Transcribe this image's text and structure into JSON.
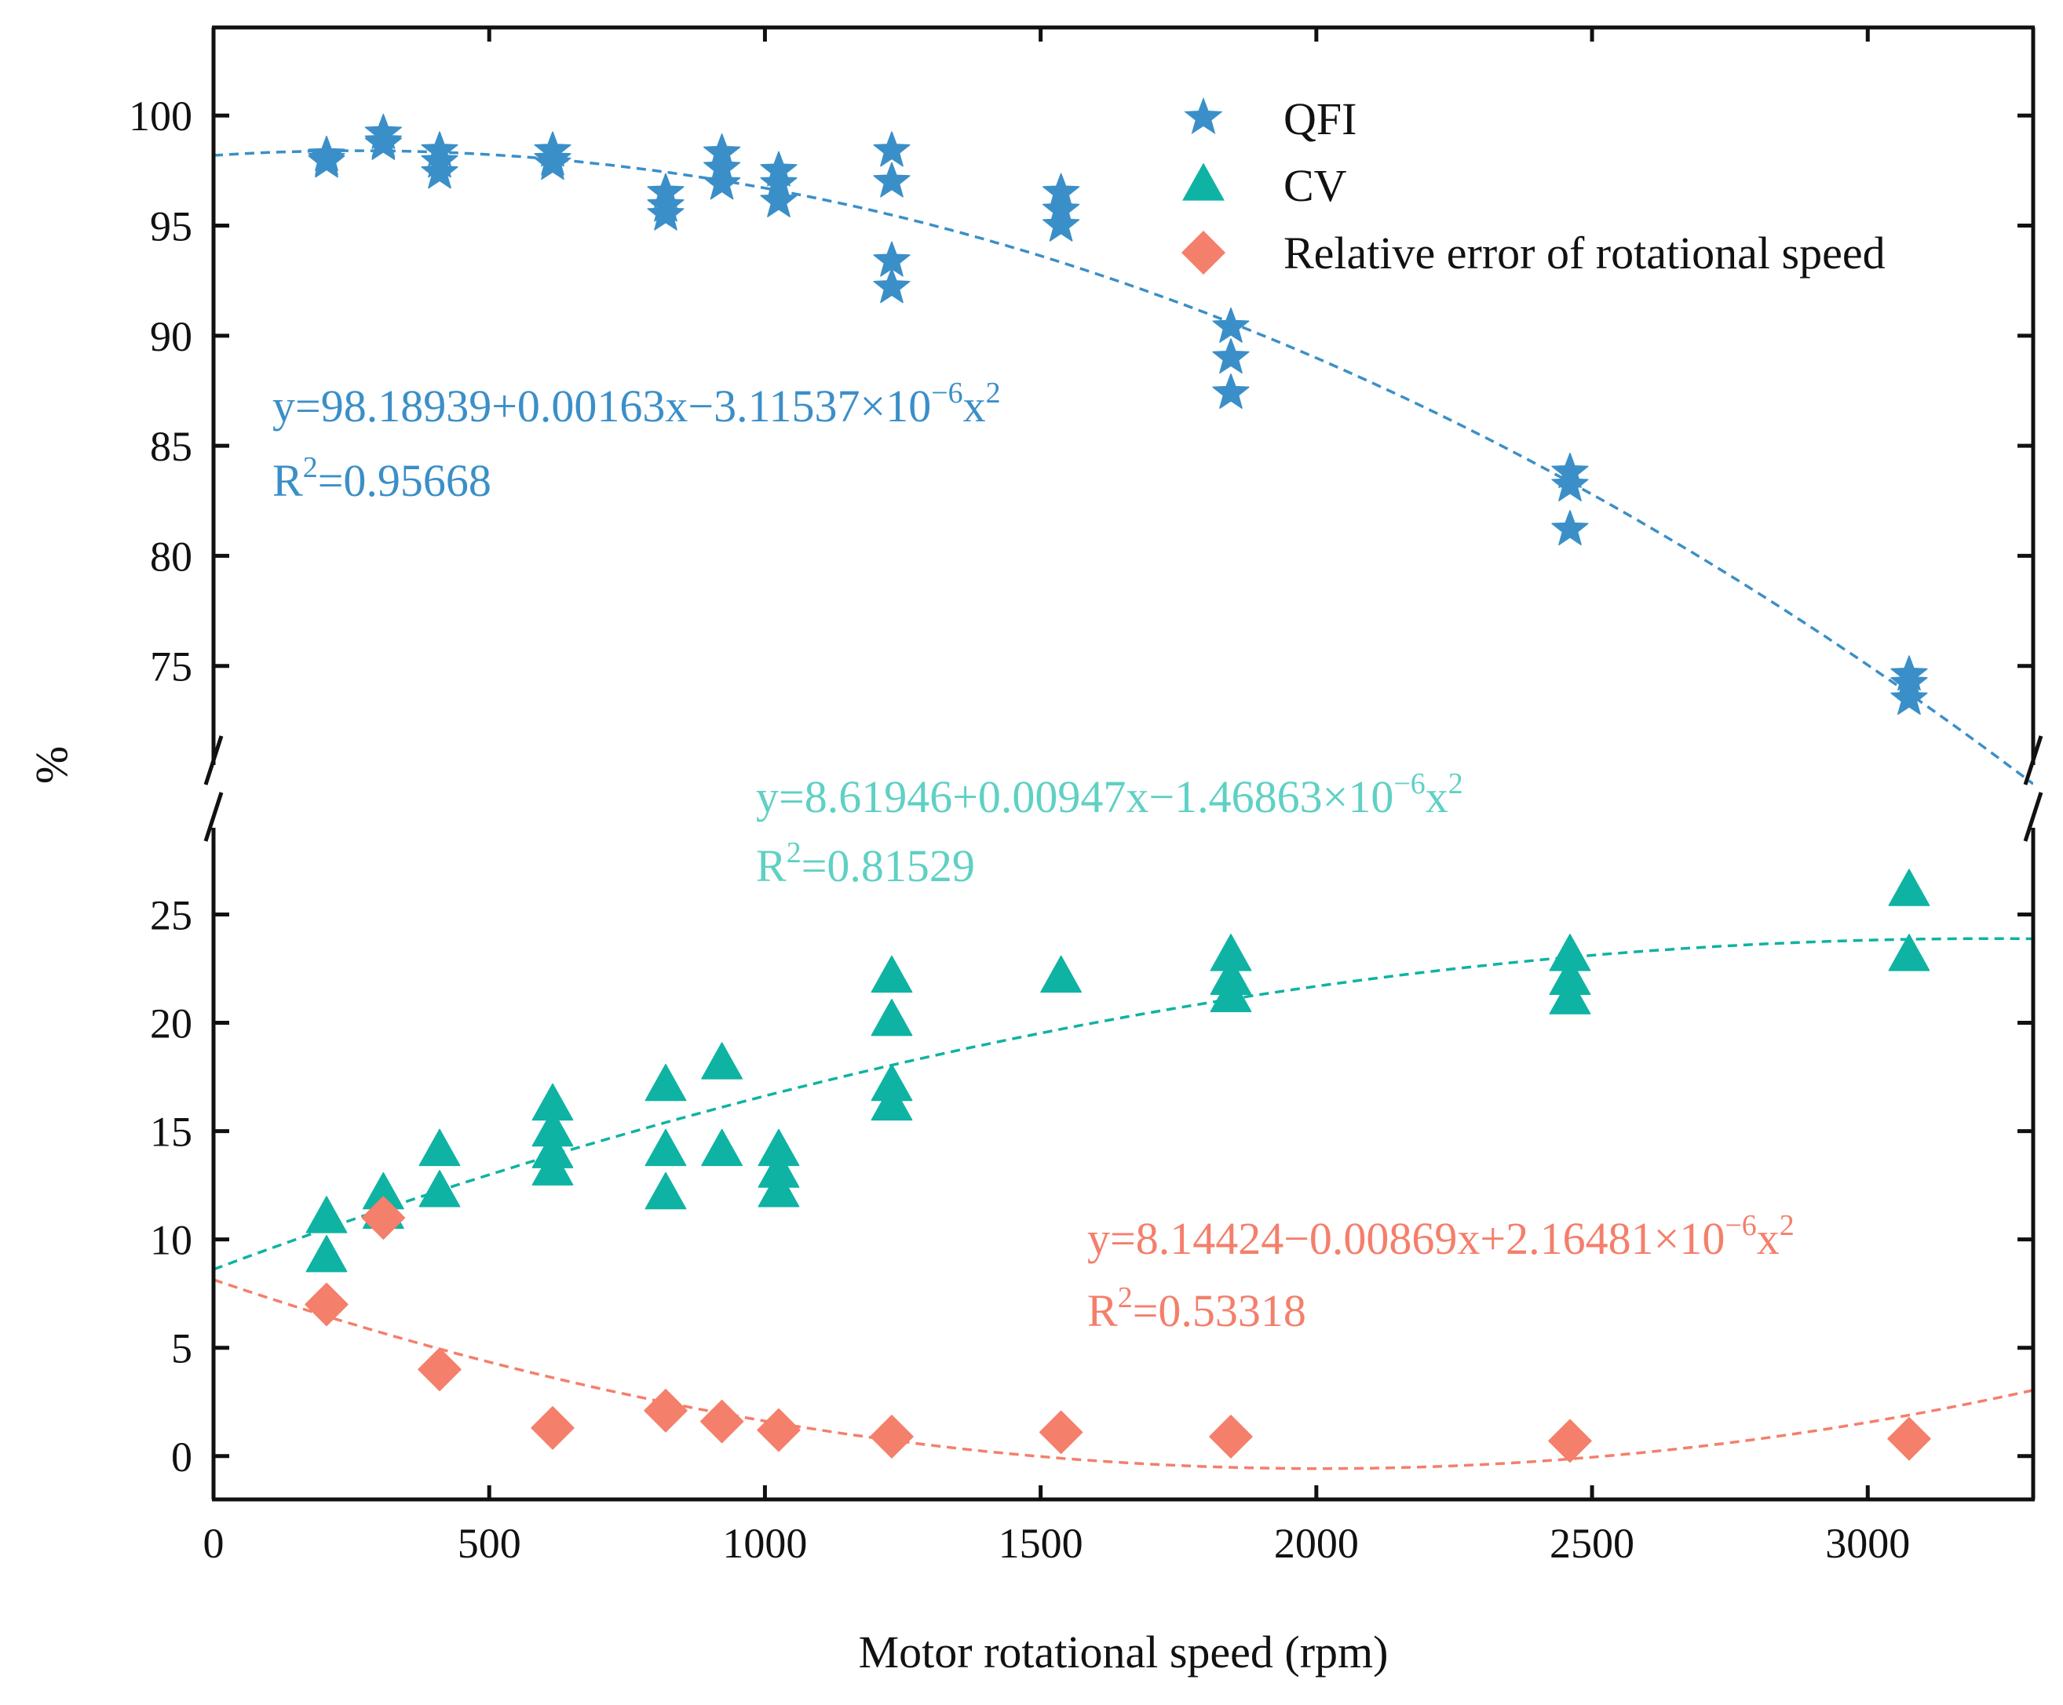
{
  "chart_data": {
    "type": "scatter",
    "xlabel": "Motor rotational speed (rpm)",
    "ylabel": "%",
    "xlim": [
      0,
      3300
    ],
    "xticks": [
      0,
      500,
      1000,
      1500,
      2000,
      2500,
      3000
    ],
    "upper_panel": {
      "ylim": [
        70.5,
        104
      ],
      "yticks": [
        75,
        80,
        85,
        90,
        95,
        100
      ]
    },
    "lower_panel": {
      "ylim": [
        -2,
        29
      ],
      "yticks": [
        0,
        5,
        10,
        15,
        20,
        25
      ]
    },
    "axis_break": true,
    "legend_position": "top-right",
    "series": [
      {
        "name": "QFI",
        "color": "#3b8fc8",
        "marker": "star",
        "panel": "upper",
        "points": [
          [
            205,
            98.2
          ],
          [
            205,
            97.9
          ],
          [
            205,
            98.0
          ],
          [
            308,
            99.2
          ],
          [
            308,
            98.8
          ],
          [
            308,
            98.7
          ],
          [
            410,
            98.4
          ],
          [
            410,
            97.9
          ],
          [
            410,
            97.4
          ],
          [
            615,
            98.4
          ],
          [
            615,
            98.0
          ],
          [
            615,
            97.8
          ],
          [
            820,
            96.5
          ],
          [
            820,
            95.9
          ],
          [
            820,
            95.5
          ],
          [
            922,
            98.3
          ],
          [
            922,
            97.6
          ],
          [
            922,
            96.9
          ],
          [
            1025,
            97.5
          ],
          [
            1025,
            96.9
          ],
          [
            1025,
            96.1
          ],
          [
            1230,
            98.4
          ],
          [
            1230,
            97.0
          ],
          [
            1230,
            93.4
          ],
          [
            1230,
            92.2
          ],
          [
            1537,
            96.5
          ],
          [
            1537,
            95.7
          ],
          [
            1537,
            95.0
          ],
          [
            1845,
            90.4
          ],
          [
            1845,
            89.0
          ],
          [
            1845,
            87.4
          ],
          [
            2460,
            83.8
          ],
          [
            2460,
            83.2
          ],
          [
            2460,
            81.2
          ],
          [
            3075,
            74.6
          ],
          [
            3075,
            74.2
          ],
          [
            3075,
            73.5
          ]
        ],
        "fit": {
          "equation": "y=98.18939+0.00163x−3.11537×10",
          "exponent": "−6",
          "tail": "x",
          "tail_exponent": "2",
          "r2_prefix": "R",
          "r2_exponent": "2",
          "r2_value": "=0.95668",
          "coefficients": [
            98.18939,
            0.00163,
            -3.11537e-06
          ]
        }
      },
      {
        "name": "CV",
        "color": "#0fb3a3",
        "marker": "triangle",
        "panel": "lower",
        "points": [
          [
            205,
            11.0
          ],
          [
            205,
            9.2
          ],
          [
            308,
            12.1
          ],
          [
            308,
            11.2
          ],
          [
            410,
            14.1
          ],
          [
            410,
            12.2
          ],
          [
            615,
            16.2
          ],
          [
            615,
            15.0
          ],
          [
            615,
            14.0
          ],
          [
            615,
            13.2
          ],
          [
            820,
            17.1
          ],
          [
            820,
            14.1
          ],
          [
            820,
            12.1
          ],
          [
            922,
            18.1
          ],
          [
            922,
            14.1
          ],
          [
            1025,
            14.1
          ],
          [
            1025,
            13.1
          ],
          [
            1025,
            12.2
          ],
          [
            1230,
            22.1
          ],
          [
            1230,
            20.1
          ],
          [
            1230,
            17.1
          ],
          [
            1230,
            16.2
          ],
          [
            1537,
            22.1
          ],
          [
            1845,
            23.1
          ],
          [
            1845,
            22.0
          ],
          [
            1845,
            21.2
          ],
          [
            2460,
            23.1
          ],
          [
            2460,
            22.0
          ],
          [
            2460,
            21.1
          ],
          [
            3075,
            26.1
          ],
          [
            3075,
            23.1
          ]
        ],
        "fit": {
          "equation": "y=8.61946+0.00947x−1.46863×10",
          "exponent": "−6",
          "tail": "x",
          "tail_exponent": "2",
          "r2_prefix": "R",
          "r2_exponent": "2",
          "r2_value": "=0.81529",
          "coefficients": [
            8.61946,
            0.00947,
            -1.46863e-06
          ]
        }
      },
      {
        "name": "Relative error of rotational speed",
        "color": "#f47f6b",
        "marker": "diamond",
        "panel": "lower",
        "points": [
          [
            205,
            7.0
          ],
          [
            308,
            11.0
          ],
          [
            410,
            4.0
          ],
          [
            615,
            1.3
          ],
          [
            820,
            2.1
          ],
          [
            922,
            1.6
          ],
          [
            1025,
            1.2
          ],
          [
            1230,
            0.9
          ],
          [
            1537,
            1.1
          ],
          [
            1845,
            0.9
          ],
          [
            2460,
            0.7
          ],
          [
            3075,
            0.8
          ]
        ],
        "fit": {
          "equation": "y=8.14424−0.00869x+2.16481×10",
          "exponent": "−6",
          "tail": "x",
          "tail_exponent": "2",
          "r2_prefix": "R",
          "r2_exponent": "2",
          "r2_value": "=0.53318",
          "coefficients": [
            8.14424,
            -0.00869,
            2.16481e-06
          ]
        }
      }
    ]
  }
}
